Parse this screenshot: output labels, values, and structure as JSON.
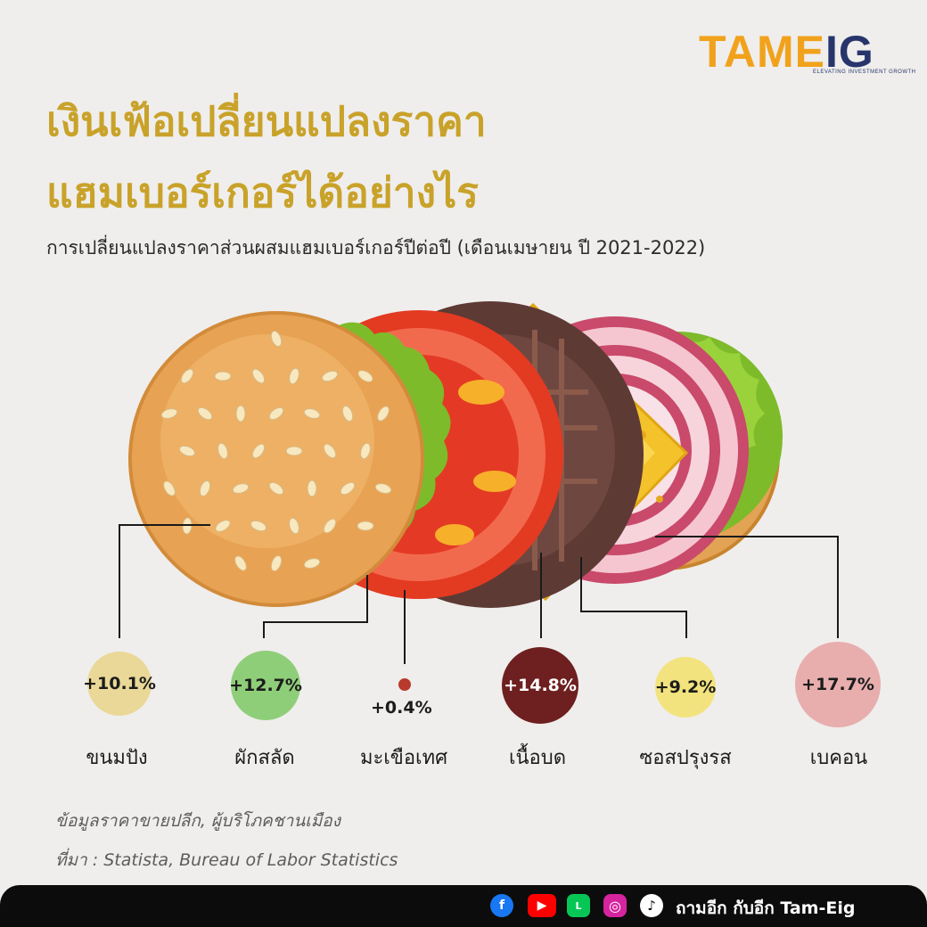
{
  "brand": {
    "logo_main": "TAME",
    "logo_end": "IG",
    "tagline": "ELEVATING INVESTMENT GROWTH",
    "accent": "#f1a21c",
    "navy": "#27356c"
  },
  "title_line1": "เงินเฟ้อเปลี่ยนแปลงราคา",
  "title_line2": "แฮมเบอร์เกอร์ได้อย่างไร",
  "subtitle": "การเปลี่ยนแปลงราคาส่วนผสมแฮมเบอร์เกอร์ปีต่อปี (เดือนเมษายน ปี 2021-2022)",
  "ingredients": [
    {
      "name": "ขนมปัง",
      "change": "+10.1%",
      "value": 10.1,
      "color": "#e9d897"
    },
    {
      "name": "ผักสลัด",
      "change": "+12.7%",
      "value": 12.7,
      "color": "#8fce79"
    },
    {
      "name": "มะเขือเทศ",
      "change": "+0.4%",
      "value": 0.4,
      "color": "#b83a2c"
    },
    {
      "name": "เนื้อบด",
      "change": "+14.8%",
      "value": 14.8,
      "color": "#6e1f1f"
    },
    {
      "name": "ซอสปรุงรส",
      "change": "+9.2%",
      "value": 9.2,
      "color": "#f3e37e"
    },
    {
      "name": "เบคอน",
      "change": "+17.7%",
      "value": 17.7,
      "color": "#e8aeae"
    }
  ],
  "notes": {
    "data_note": "ข้อมูลราคาขายปลีก, ผู้บริโภคชานเมือง",
    "source": "ที่มา : Statista, Bureau of Labor Statistics"
  },
  "footer": {
    "channel": "ถามอีก กับอีก Tam-Eig",
    "icons": [
      "facebook-icon",
      "youtube-icon",
      "line-icon",
      "instagram-icon",
      "tiktok-icon"
    ]
  }
}
